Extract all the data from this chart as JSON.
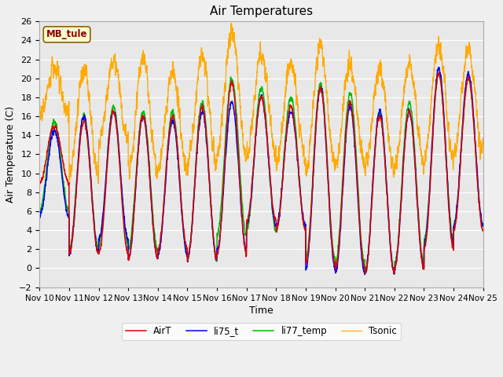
{
  "title": "Air Temperatures",
  "xlabel": "Time",
  "ylabel": "Air Temperature (C)",
  "ylim": [
    -2,
    26
  ],
  "yticks": [
    -2,
    0,
    2,
    4,
    6,
    8,
    10,
    12,
    14,
    16,
    18,
    20,
    22,
    24,
    26
  ],
  "site_label": "MB_tule",
  "legend": [
    "AirT",
    "li75_t",
    "li77_temp",
    "Tsonic"
  ],
  "colors": {
    "AirT": "#dd0000",
    "li75_t": "#0000ee",
    "li77_temp": "#00bb00",
    "Tsonic": "#ffaa00"
  },
  "background_color": "#f0f0f0",
  "plot_bg_color": "#e8e8e8",
  "n_days": 15,
  "start_day": 10,
  "figsize": [
    6.4,
    4.8
  ],
  "dpi": 100
}
